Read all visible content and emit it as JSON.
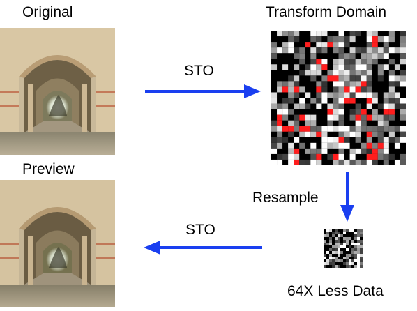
{
  "labels": {
    "original": "Original",
    "transform_domain": "Transform Domain",
    "preview": "Preview",
    "sto_top": "STO",
    "resample": "Resample",
    "sto_bottom": "STO",
    "less_data": "64X Less Data"
  },
  "colors": {
    "arrow": "#1a3ff0",
    "highlight": "#ff1e1e",
    "grid_bg": "#000000"
  },
  "icons": {
    "original_image": "arcade-photo",
    "preview_image": "arcade-photo-preview",
    "transform_grid": "coefficient-grid",
    "small_grid": "small-coefficient-grid"
  }
}
